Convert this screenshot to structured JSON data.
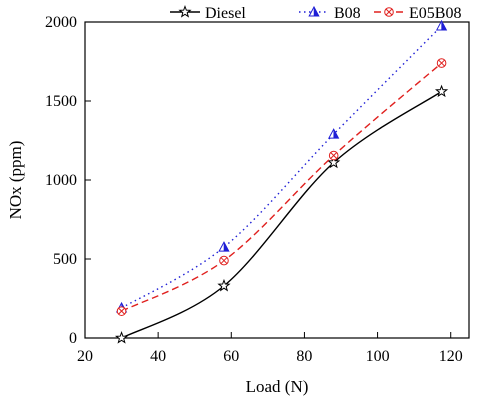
{
  "chart_data": {
    "type": "line",
    "title": "",
    "xlabel": "Load (N)",
    "ylabel": "NOx (ppm)",
    "xlim": [
      20,
      125
    ],
    "ylim": [
      0,
      2000
    ],
    "xticks": [
      20,
      40,
      60,
      80,
      100,
      120
    ],
    "yticks": [
      0,
      500,
      1000,
      1500,
      2000
    ],
    "grid": false,
    "legend_position": "top",
    "series": [
      {
        "name": "Diesel",
        "color": "#000000",
        "line_style": "solid",
        "marker": "star",
        "x": [
          30,
          58,
          88,
          117.5
        ],
        "y": [
          0,
          330,
          1110,
          1560
        ]
      },
      {
        "name": "B08",
        "color": "#1f1fd6",
        "line_style": "dotted",
        "marker": "triangle",
        "x": [
          30,
          58,
          88,
          117.5
        ],
        "y": [
          190,
          575,
          1290,
          1975
        ]
      },
      {
        "name": "E05B08",
        "color": "#e0201e",
        "line_style": "dashed",
        "marker": "circle-x",
        "x": [
          30,
          58,
          88,
          117.5
        ],
        "y": [
          170,
          490,
          1155,
          1740
        ]
      }
    ]
  }
}
